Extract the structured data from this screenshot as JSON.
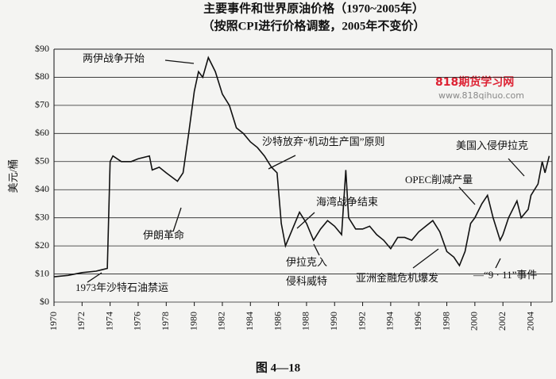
{
  "chart_data": {
    "type": "line",
    "title": "主要事件和世界原油价格（1970~2005年）",
    "subtitle": "（按照CPI进行价格调整，2005年不变价）",
    "y_label": "美元/桶",
    "caption": "图 4—18",
    "watermark": [
      "818期货学习网",
      "www.818qihuo.com"
    ],
    "annotations": [
      "两伊战争开始",
      "沙特放弃“机动生产国”原则",
      "伊朗革命",
      "1973年沙特石油禁运",
      "伊拉克入",
      "侵科威特",
      "海湾战争结束",
      "亚洲金融危机爆发",
      "—“9 · 11”事件",
      "OPEC削减产量",
      "美国入侵伊拉克"
    ],
    "grid": true,
    "xlim": [
      1970,
      2005.5
    ],
    "xticks": [
      1970,
      1972,
      1974,
      1976,
      1978,
      1980,
      1982,
      1984,
      1986,
      1988,
      1990,
      1992,
      1994,
      1996,
      1998,
      2000,
      2002,
      2004
    ],
    "ylim": [
      0,
      90
    ],
    "yticks": [
      {
        "value": 0,
        "label": "$0"
      },
      {
        "value": 10,
        "label": "$10"
      },
      {
        "value": 20,
        "label": "$20"
      },
      {
        "value": 30,
        "label": "$30"
      },
      {
        "value": 40,
        "label": "$40"
      },
      {
        "value": 50,
        "label": "$50"
      },
      {
        "value": 60,
        "label": "$60"
      },
      {
        "value": 70,
        "label": "$70"
      },
      {
        "value": 80,
        "label": "$80"
      },
      {
        "value": 90,
        "label": "$90"
      }
    ],
    "x": [
      1970,
      1971,
      1972,
      1973,
      1973.8,
      1974.0,
      1974.2,
      1974.8,
      1975.5,
      1976,
      1976.8,
      1977,
      1977.5,
      1978,
      1978.8,
      1979.2,
      1979.6,
      1980,
      1980.3,
      1980.6,
      1981,
      1981.5,
      1982,
      1982.5,
      1983,
      1983.5,
      1984,
      1984.5,
      1985,
      1985.5,
      1985.9,
      1986.2,
      1986.5,
      1987,
      1987.5,
      1988,
      1988.5,
      1989,
      1989.5,
      1990,
      1990.5,
      1990.8,
      1991,
      1991.5,
      1992,
      1992.5,
      1993,
      1993.5,
      1994,
      1994.5,
      1995,
      1995.5,
      1996,
      1996.5,
      1997,
      1997.5,
      1998,
      1998.5,
      1998.9,
      1999.3,
      1999.7,
      2000,
      2000.5,
      2000.9,
      2001.3,
      2001.8,
      2002,
      2002.4,
      2003,
      2003.3,
      2003.8,
      2004,
      2004.5,
      2004.8,
      2005,
      2005.3
    ],
    "series": [
      {
        "name": "原油价格",
        "color": "#111111",
        "values": [
          9,
          9.5,
          10.5,
          11,
          12,
          50,
          52,
          50,
          50,
          51,
          52,
          47,
          48,
          46,
          43,
          46,
          60,
          75,
          82,
          80,
          87,
          82,
          74,
          70,
          62,
          60,
          57,
          55,
          52,
          48,
          46,
          28,
          20,
          26,
          32,
          28,
          22,
          26,
          29,
          27,
          24,
          47,
          30,
          26,
          26,
          27,
          24,
          22,
          19,
          23,
          23,
          22,
          25,
          27,
          29,
          25,
          18,
          16,
          13,
          18,
          28,
          30,
          35,
          38,
          30,
          22,
          24,
          30,
          36,
          30,
          33,
          38,
          42,
          50,
          46,
          52
        ]
      }
    ]
  }
}
